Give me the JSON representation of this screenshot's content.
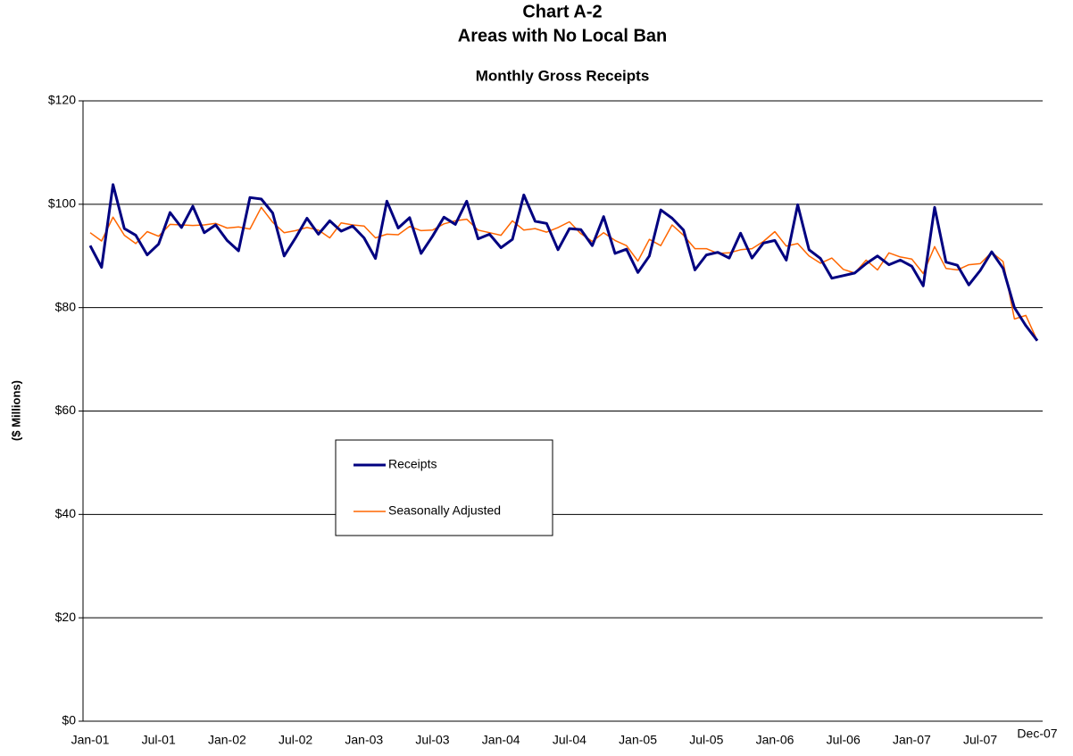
{
  "chart_data": {
    "type": "line",
    "title": [
      "Chart A-2",
      "Areas with No Local Ban"
    ],
    "subtitle": "Monthly Gross Receipts",
    "y_label": "($ Millions)",
    "categories": [
      "Jan-01",
      null,
      null,
      null,
      null,
      null,
      "Jul-01",
      null,
      null,
      null,
      null,
      null,
      "Jan-02",
      null,
      null,
      null,
      null,
      null,
      "Jul-02",
      null,
      null,
      null,
      null,
      null,
      "Jan-03",
      null,
      null,
      null,
      null,
      null,
      "Jul-03",
      null,
      null,
      null,
      null,
      null,
      "Jan-04",
      null,
      null,
      null,
      null,
      null,
      "Jul-04",
      null,
      null,
      null,
      null,
      null,
      "Jan-05",
      null,
      null,
      null,
      null,
      null,
      "Jul-05",
      null,
      null,
      null,
      null,
      null,
      "Jan-06",
      null,
      null,
      null,
      null,
      null,
      "Jul-06",
      null,
      null,
      null,
      null,
      null,
      "Jan-07",
      null,
      null,
      null,
      null,
      null,
      "Jul-07",
      null,
      null,
      null,
      null,
      "Dec-07"
    ],
    "series": [
      {
        "name": "Receipts",
        "color": "#000080",
        "width": 3,
        "values": [
          92,
          87.8,
          103.8,
          95.3,
          94,
          90.2,
          92.3,
          98.4,
          95.5,
          99.6,
          94.5,
          96,
          93,
          91,
          101.3,
          101,
          98.3,
          90,
          93.5,
          97.3,
          94.2,
          96.8,
          94.8,
          95.8,
          93.5,
          89.5,
          100.6,
          95.4,
          97.4,
          90.5,
          93.8,
          97.5,
          96.1,
          100.6,
          93.3,
          94.2,
          91.6,
          93.2,
          101.8,
          96.7,
          96.3,
          91.2,
          95.3,
          95.1,
          92,
          97.6,
          90.5,
          91.3,
          86.8,
          90,
          98.9,
          97.3,
          95,
          87.3,
          90.2,
          90.7,
          89.6,
          94.4,
          89.6,
          92.5,
          93,
          89.2,
          99.9,
          91.2,
          89.5,
          85.7,
          86.2,
          86.7,
          88.5,
          90,
          88.3,
          89.2,
          88,
          84.2,
          99.4,
          88.8,
          88.2,
          84.4,
          87.2,
          90.8,
          87.6,
          80,
          76.5,
          73.6
        ]
      },
      {
        "name": "Seasonally Adjusted",
        "color": "#ff6600",
        "width": 1.5,
        "values": [
          94.5,
          92.9,
          97.5,
          94,
          92.4,
          94.7,
          93.8,
          96.1,
          96,
          95.9,
          96,
          96.3,
          95.4,
          95.6,
          95.2,
          99.4,
          96.5,
          94.5,
          94.9,
          95.5,
          95,
          93.5,
          96.4,
          96,
          95.8,
          93.5,
          94.2,
          94.1,
          95.7,
          94.9,
          95,
          96.2,
          96.8,
          97.1,
          95,
          94.5,
          94,
          96.8,
          95,
          95.3,
          94.6,
          95.5,
          96.6,
          94.3,
          92.8,
          94.5,
          93,
          92,
          89,
          93.2,
          92,
          96,
          94,
          91.4,
          91.4,
          90.5,
          90.6,
          91.2,
          91.4,
          92.8,
          94.7,
          91.9,
          92.4,
          90,
          88.6,
          89.6,
          87.4,
          86.7,
          89.2,
          87.3,
          90.6,
          89.8,
          89.4,
          86.6,
          91.8,
          87.6,
          87.3,
          88.3,
          88.5,
          90.7,
          88.9,
          77.8,
          78.5,
          73.6
        ]
      }
    ],
    "ylim": [
      0,
      120
    ],
    "yticks": [
      {
        "value": 0,
        "label": "$0"
      },
      {
        "value": 20,
        "label": "$20"
      },
      {
        "value": 40,
        "label": "$40"
      },
      {
        "value": 60,
        "label": "$60"
      },
      {
        "value": 80,
        "label": "$80"
      },
      {
        "value": 100,
        "label": "$100"
      },
      {
        "value": 120,
        "label": "$120"
      }
    ],
    "grid": true,
    "legend": "center"
  }
}
